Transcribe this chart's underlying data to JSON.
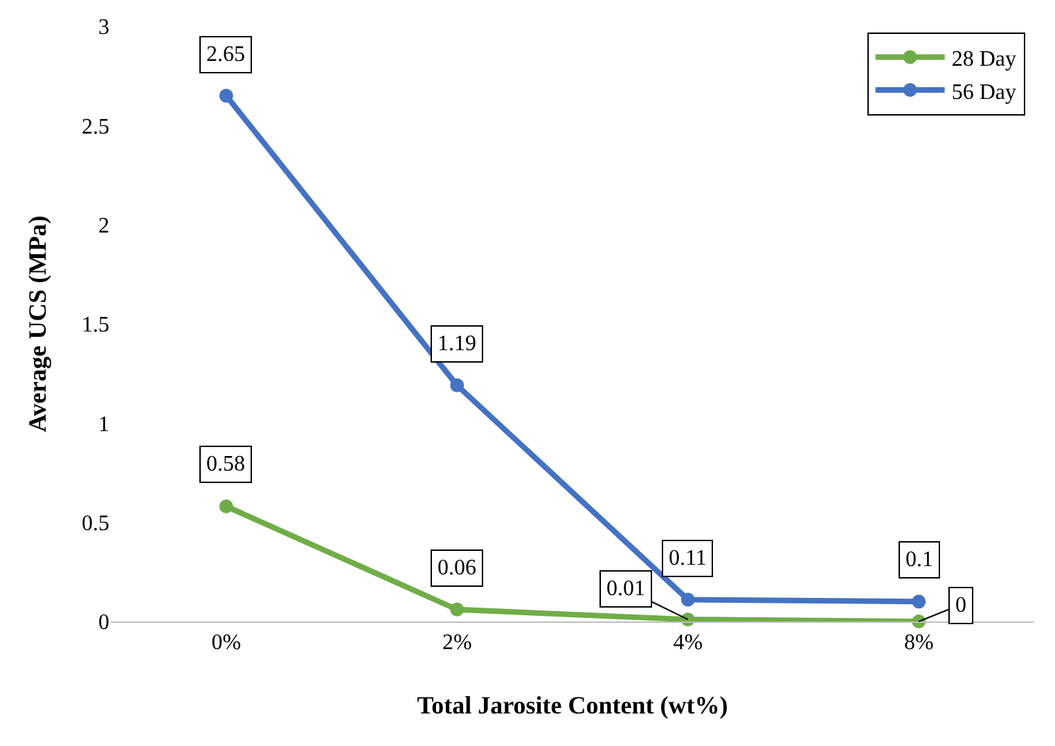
{
  "chart_data": {
    "type": "line",
    "xlabel": "Total Jarosite Content (wt%)",
    "ylabel": "Average UCS (MPa)",
    "categories": [
      "0%",
      "2%",
      "4%",
      "8%"
    ],
    "series": [
      {
        "name": "28 Day",
        "color": "#70ad47",
        "values": [
          0.58,
          0.06,
          0.01,
          0
        ]
      },
      {
        "name": "56 Day",
        "color": "#4472c4",
        "values": [
          2.65,
          1.19,
          0.11,
          0.1
        ]
      }
    ],
    "ylim": [
      0,
      3
    ],
    "yticks": [
      0,
      0.5,
      1,
      1.5,
      2,
      2.5,
      3
    ],
    "legend": "top right",
    "marker": "circle",
    "line_style": "solid",
    "data_labels": true
  }
}
